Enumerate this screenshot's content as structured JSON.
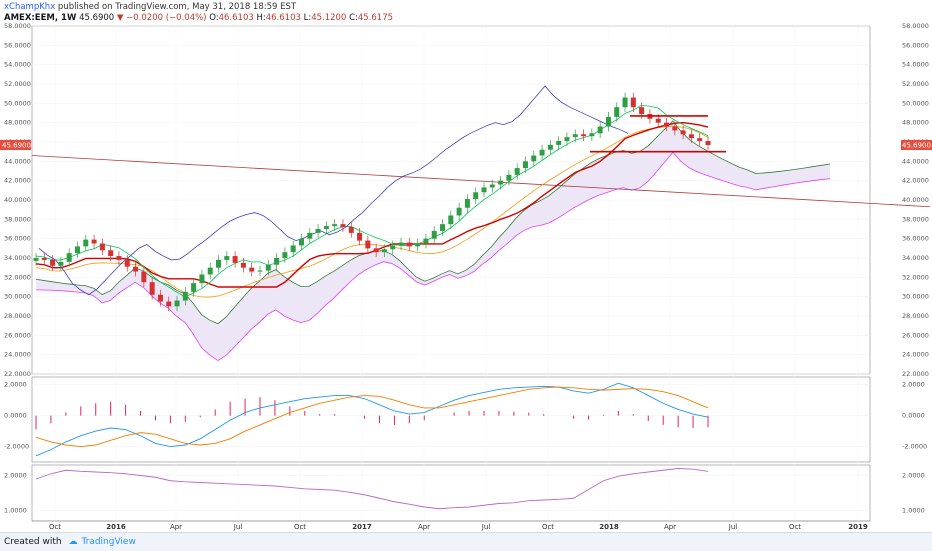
{
  "header": {
    "author": "xChampKhx",
    "published": " published on TradingView.com, May 31, 2018 18:59 EST",
    "symbol": "AMEX:EEM, 1W",
    "last": "45.6900",
    "change_arrow": "▼",
    "change": "−0.0200 (−0.04%)",
    "o_label": "O:",
    "o_value": "46.6103",
    "h_label": "H:",
    "h_value": "46.6103",
    "l_label": "L:",
    "l_value": "45.1200",
    "c_label": "C:",
    "c_value": "45.6175"
  },
  "footer": {
    "created_with": "Created with",
    "brand": "TradingView"
  },
  "colors": {
    "up": "#26a69a",
    "down": "#ef5350",
    "candle_up": "#2e9e45",
    "candle_down": "#d63031",
    "price_badge": "#e74c3c",
    "tenkan": "#00c853",
    "kijun": "#d50000",
    "chikou": "#3f3fbf",
    "senkou_a": "#2e7d32",
    "senkou_b": "#e040fb",
    "ma": "#f39c12",
    "trend": "#b03a3a",
    "macd": "#2196f3",
    "signal": "#f57c00",
    "hist": "#e91e63",
    "rsi": "#ba68c8"
  },
  "chart_data": [
    {
      "type": "candlestick",
      "title": "",
      "ylim": [
        22,
        58
      ],
      "y_ticks": [
        "58.0000",
        "56.0000",
        "54.0000",
        "52.0000",
        "50.0000",
        "48.0000",
        "46.0000",
        "44.0000",
        "42.0000",
        "40.0000",
        "38.0000",
        "36.0000",
        "34.0000",
        "32.0000",
        "30.0000",
        "28.0000",
        "26.0000",
        "24.0000",
        "22.0000"
      ],
      "last_price_label": "45.6900",
      "x_ticks": [
        "Oct",
        "2016",
        "Apr",
        "Jul",
        "Oct",
        "2017",
        "Apr",
        "Jul",
        "Oct",
        "2018",
        "Apr",
        "Jul",
        "Oct",
        "2019"
      ],
      "closes": [
        34.0,
        33.8,
        33.2,
        33.6,
        34.5,
        35.2,
        35.9,
        35.5,
        34.8,
        34.2,
        33.8,
        33.1,
        32.6,
        31.5,
        30.2,
        29.5,
        29.0,
        29.6,
        30.5,
        31.4,
        32.3,
        33.0,
        33.8,
        34.2,
        33.5,
        33.0,
        32.6,
        32.7,
        33.3,
        34.0,
        34.6,
        35.3,
        36.0,
        36.6,
        37.0,
        37.3,
        37.5,
        37.2,
        36.6,
        35.8,
        35.0,
        34.6,
        34.9,
        35.3,
        35.6,
        35.2,
        35.5,
        36.0,
        36.8,
        37.5,
        38.4,
        39.2,
        40.1,
        40.8,
        41.3,
        41.6,
        42.0,
        42.6,
        43.3,
        44.0,
        44.6,
        45.2,
        45.7,
        46.1,
        46.5,
        46.8,
        46.6,
        46.9,
        47.6,
        48.6,
        49.6,
        50.6,
        49.6,
        48.9,
        48.4,
        48.0,
        47.6,
        47.2,
        46.8,
        46.4,
        46.1,
        45.69
      ],
      "series": [
        {
          "name": "Tenkan-sen"
        },
        {
          "name": "Kijun-sen"
        },
        {
          "name": "Chikou span"
        },
        {
          "name": "Senkou span A"
        },
        {
          "name": "Senkou span B"
        },
        {
          "name": "Moving average"
        },
        {
          "name": "Trend line"
        }
      ]
    },
    {
      "type": "line",
      "title": "",
      "ylim": [
        -3,
        2.5
      ],
      "y_ticks": [
        "2.0000",
        "0.0000",
        "-2.0000"
      ],
      "series": [
        {
          "name": "MACD",
          "values": [
            -2.6,
            -2.2,
            -1.7,
            -1.3,
            -1.0,
            -0.8,
            -0.9,
            -1.3,
            -1.8,
            -2.0,
            -1.9,
            -1.5,
            -0.9,
            -0.3,
            0.2,
            0.5,
            0.7,
            0.9,
            1.1,
            1.2,
            1.3,
            1.3,
            1.1,
            0.7,
            0.3,
            0.1,
            0.2,
            0.6,
            1.0,
            1.3,
            1.5,
            1.7,
            1.8,
            1.85,
            1.9,
            1.85,
            1.6,
            1.45,
            1.7,
            2.1,
            1.8,
            1.3,
            0.8,
            0.4,
            0.1,
            -0.1
          ]
        },
        {
          "name": "Signal",
          "values": [
            -1.4,
            -1.7,
            -1.9,
            -2.0,
            -1.9,
            -1.6,
            -1.3,
            -1.1,
            -1.2,
            -1.5,
            -1.8,
            -1.9,
            -1.8,
            -1.5,
            -1.0,
            -0.6,
            -0.2,
            0.2,
            0.5,
            0.8,
            1.0,
            1.2,
            1.3,
            1.25,
            1.0,
            0.7,
            0.5,
            0.5,
            0.7,
            0.9,
            1.1,
            1.3,
            1.5,
            1.7,
            1.8,
            1.85,
            1.8,
            1.7,
            1.65,
            1.7,
            1.75,
            1.7,
            1.55,
            1.3,
            0.9,
            0.5
          ]
        },
        {
          "name": "Histogram",
          "values": [
            -0.9,
            -0.5,
            0.2,
            0.6,
            0.8,
            0.9,
            0.7,
            0.3,
            -0.3,
            -0.5,
            -0.4,
            -0.1,
            0.4,
            0.9,
            1.1,
            1.2,
            1.0,
            0.6,
            0.3,
            0.1,
            0.1,
            0.0,
            -0.2,
            -0.5,
            -0.6,
            -0.5,
            -0.3,
            0.0,
            0.2,
            0.3,
            0.3,
            0.3,
            0.25,
            0.2,
            0.1,
            0.0,
            -0.2,
            -0.25,
            0.05,
            0.3,
            0.1,
            -0.35,
            -0.6,
            -0.75,
            -0.8,
            -0.75
          ]
        }
      ]
    },
    {
      "type": "line",
      "title": "",
      "ylim": [
        0.7,
        2.3
      ],
      "y_ticks": [
        "2.0000",
        "1.0000"
      ],
      "series": [
        {
          "name": "Indicator",
          "values": [
            1.9,
            2.05,
            2.15,
            2.12,
            2.1,
            2.08,
            2.05,
            2.0,
            1.95,
            1.85,
            1.82,
            1.8,
            1.78,
            1.76,
            1.74,
            1.72,
            1.7,
            1.66,
            1.62,
            1.6,
            1.58,
            1.52,
            1.45,
            1.35,
            1.25,
            1.18,
            1.1,
            1.05,
            1.08,
            1.1,
            1.15,
            1.2,
            1.22,
            1.28,
            1.3,
            1.32,
            1.35,
            1.6,
            1.85,
            1.98,
            2.05,
            2.1,
            2.15,
            2.2,
            2.18,
            2.12
          ]
        }
      ]
    }
  ]
}
